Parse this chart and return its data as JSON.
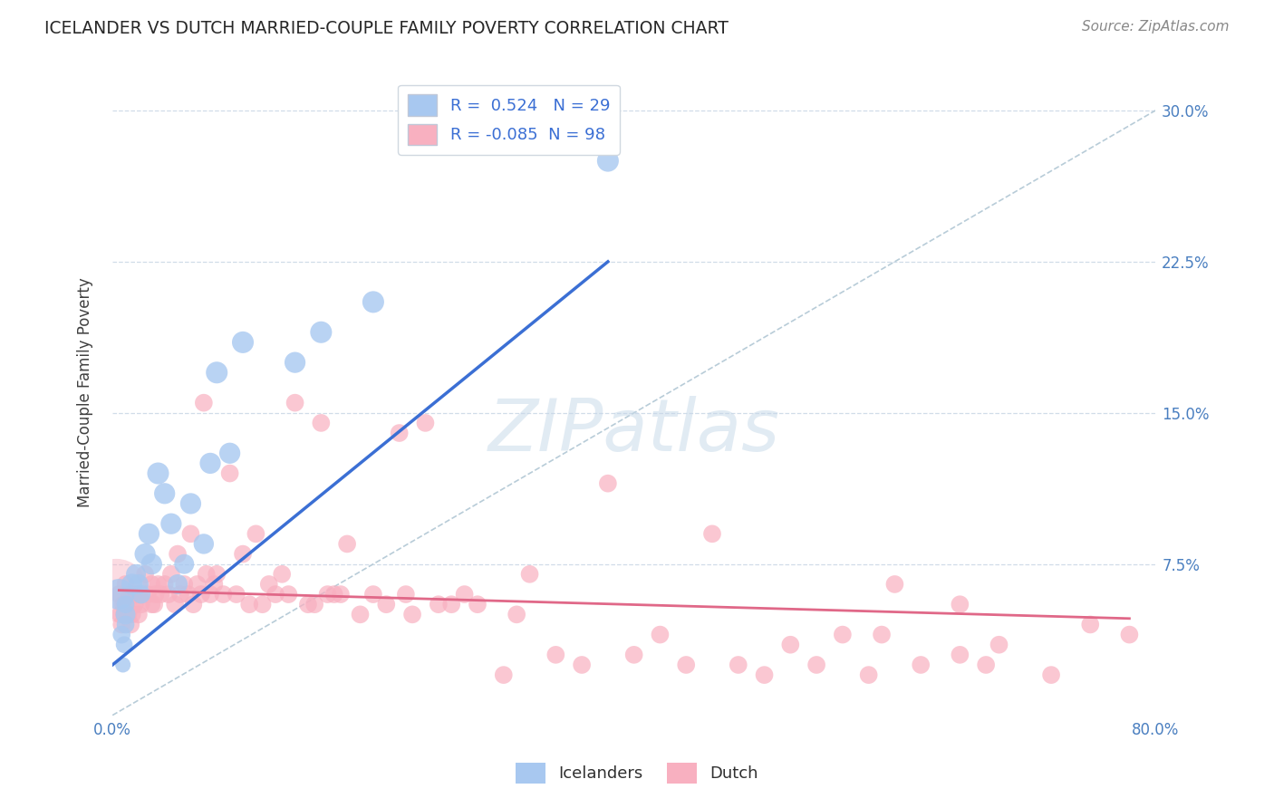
{
  "title": "ICELANDER VS DUTCH MARRIED-COUPLE FAMILY POVERTY CORRELATION CHART",
  "source": "Source: ZipAtlas.com",
  "ylabel": "Married-Couple Family Poverty",
  "xlim": [
    0.0,
    0.8
  ],
  "ylim": [
    0.0,
    0.32
  ],
  "yticks": [
    0.075,
    0.15,
    0.225,
    0.3
  ],
  "ytick_labels": [
    "7.5%",
    "15.0%",
    "22.5%",
    "30.0%"
  ],
  "xticks": [
    0.0,
    0.2,
    0.4,
    0.6,
    0.8
  ],
  "xtick_labels": [
    "0.0%",
    "",
    "",
    "",
    "80.0%"
  ],
  "legend_labels": [
    "Icelanders",
    "Dutch"
  ],
  "icelander_color": "#a8c8f0",
  "dutch_color": "#f8b0c0",
  "icelander_line_color": "#3b6fd4",
  "dutch_line_color": "#e06888",
  "diagonal_color": "#b8ccd8",
  "R_icelander": 0.524,
  "N_icelander": 29,
  "R_dutch": -0.085,
  "N_dutch": 98,
  "watermark": "ZIPatlas",
  "icelander_x": [
    0.005,
    0.007,
    0.008,
    0.009,
    0.01,
    0.01,
    0.01,
    0.015,
    0.018,
    0.02,
    0.022,
    0.025,
    0.028,
    0.03,
    0.035,
    0.04,
    0.045,
    0.05,
    0.055,
    0.06,
    0.07,
    0.075,
    0.08,
    0.09,
    0.1,
    0.14,
    0.16,
    0.2,
    0.38
  ],
  "icelander_y": [
    0.06,
    0.04,
    0.025,
    0.035,
    0.05,
    0.045,
    0.055,
    0.065,
    0.07,
    0.065,
    0.06,
    0.08,
    0.09,
    0.075,
    0.12,
    0.11,
    0.095,
    0.065,
    0.075,
    0.105,
    0.085,
    0.125,
    0.17,
    0.13,
    0.185,
    0.175,
    0.19,
    0.205,
    0.275
  ],
  "icelander_sizes": [
    600,
    200,
    150,
    180,
    250,
    200,
    200,
    280,
    250,
    250,
    220,
    280,
    280,
    280,
    300,
    280,
    280,
    250,
    250,
    280,
    260,
    280,
    300,
    280,
    300,
    280,
    300,
    300,
    300
  ],
  "dutch_x": [
    0.005,
    0.006,
    0.007,
    0.008,
    0.009,
    0.01,
    0.01,
    0.012,
    0.013,
    0.014,
    0.015,
    0.015,
    0.017,
    0.018,
    0.02,
    0.02,
    0.022,
    0.025,
    0.027,
    0.03,
    0.03,
    0.032,
    0.033,
    0.035,
    0.037,
    0.04,
    0.043,
    0.045,
    0.048,
    0.05,
    0.052,
    0.055,
    0.058,
    0.06,
    0.062,
    0.065,
    0.068,
    0.07,
    0.072,
    0.075,
    0.078,
    0.08,
    0.085,
    0.09,
    0.095,
    0.1,
    0.105,
    0.11,
    0.115,
    0.12,
    0.125,
    0.13,
    0.135,
    0.14,
    0.15,
    0.155,
    0.16,
    0.165,
    0.17,
    0.175,
    0.18,
    0.19,
    0.2,
    0.21,
    0.22,
    0.225,
    0.23,
    0.24,
    0.25,
    0.26,
    0.27,
    0.28,
    0.3,
    0.31,
    0.32,
    0.34,
    0.36,
    0.38,
    0.4,
    0.42,
    0.44,
    0.46,
    0.48,
    0.5,
    0.52,
    0.54,
    0.56,
    0.58,
    0.6,
    0.62,
    0.65,
    0.68,
    0.72,
    0.75,
    0.78,
    0.65,
    0.67,
    0.59
  ],
  "dutch_y": [
    0.06,
    0.05,
    0.045,
    0.055,
    0.05,
    0.055,
    0.065,
    0.05,
    0.06,
    0.045,
    0.05,
    0.06,
    0.055,
    0.06,
    0.05,
    0.06,
    0.055,
    0.07,
    0.06,
    0.055,
    0.065,
    0.055,
    0.06,
    0.065,
    0.06,
    0.065,
    0.06,
    0.07,
    0.055,
    0.08,
    0.06,
    0.065,
    0.06,
    0.09,
    0.055,
    0.065,
    0.06,
    0.155,
    0.07,
    0.06,
    0.065,
    0.07,
    0.06,
    0.12,
    0.06,
    0.08,
    0.055,
    0.09,
    0.055,
    0.065,
    0.06,
    0.07,
    0.06,
    0.155,
    0.055,
    0.055,
    0.145,
    0.06,
    0.06,
    0.06,
    0.085,
    0.05,
    0.06,
    0.055,
    0.14,
    0.06,
    0.05,
    0.145,
    0.055,
    0.055,
    0.06,
    0.055,
    0.02,
    0.05,
    0.07,
    0.03,
    0.025,
    0.115,
    0.03,
    0.04,
    0.025,
    0.09,
    0.025,
    0.02,
    0.035,
    0.025,
    0.04,
    0.02,
    0.065,
    0.025,
    0.055,
    0.035,
    0.02,
    0.045,
    0.04,
    0.03,
    0.025,
    0.04
  ],
  "dutch_sizes": [
    200,
    200,
    200,
    200,
    200,
    200,
    200,
    200,
    200,
    200,
    200,
    200,
    200,
    200,
    200,
    200,
    200,
    200,
    200,
    200,
    200,
    200,
    200,
    200,
    200,
    200,
    200,
    200,
    200,
    200,
    200,
    200,
    200,
    200,
    200,
    200,
    200,
    200,
    200,
    200,
    200,
    200,
    200,
    200,
    200,
    200,
    200,
    200,
    200,
    200,
    200,
    200,
    200,
    200,
    200,
    200,
    200,
    200,
    200,
    200,
    200,
    200,
    200,
    200,
    200,
    200,
    200,
    200,
    200,
    200,
    200,
    200,
    200,
    200,
    200,
    200,
    200,
    200,
    200,
    200,
    200,
    200,
    200,
    200,
    200,
    200,
    200,
    200,
    200,
    200,
    200,
    200,
    200,
    200,
    200,
    200,
    200,
    200
  ],
  "background_color": "#ffffff",
  "grid_color": "#d0dce8",
  "tick_color": "#4a7fc0",
  "icelander_line_x": [
    0.0,
    0.38
  ],
  "icelander_line_y": [
    0.025,
    0.225
  ],
  "dutch_line_x": [
    0.005,
    0.78
  ],
  "dutch_line_y": [
    0.062,
    0.048
  ]
}
